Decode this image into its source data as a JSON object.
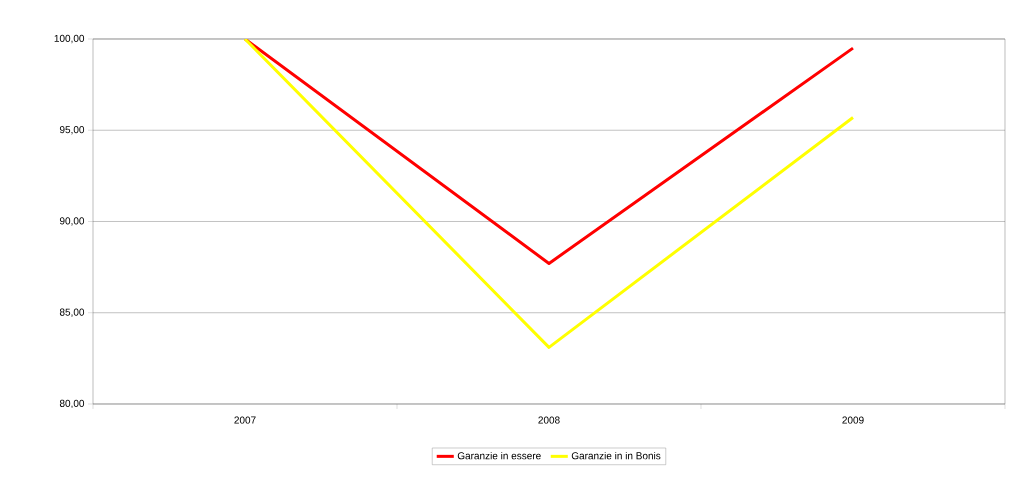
{
  "chart_data": {
    "type": "line",
    "categories": [
      "2007",
      "2008",
      "2009"
    ],
    "series": [
      {
        "name": "Garanzie in essere",
        "color": "#ff0000",
        "values": [
          100.0,
          87.7,
          99.5
        ]
      },
      {
        "name": "Garanzie in  in Bonis",
        "color": "#ffff00",
        "values": [
          100.0,
          83.1,
          95.7
        ]
      }
    ],
    "ylim": [
      80,
      100
    ],
    "yticks": [
      {
        "value": 80,
        "label": "80,00"
      },
      {
        "value": 85,
        "label": "85,00"
      },
      {
        "value": 90,
        "label": "90,00"
      },
      {
        "value": 95,
        "label": "95,00"
      },
      {
        "value": 100,
        "label": "100,00"
      }
    ],
    "grid": "y",
    "legend": "bottom",
    "marker": "none",
    "line_style": "solid"
  }
}
